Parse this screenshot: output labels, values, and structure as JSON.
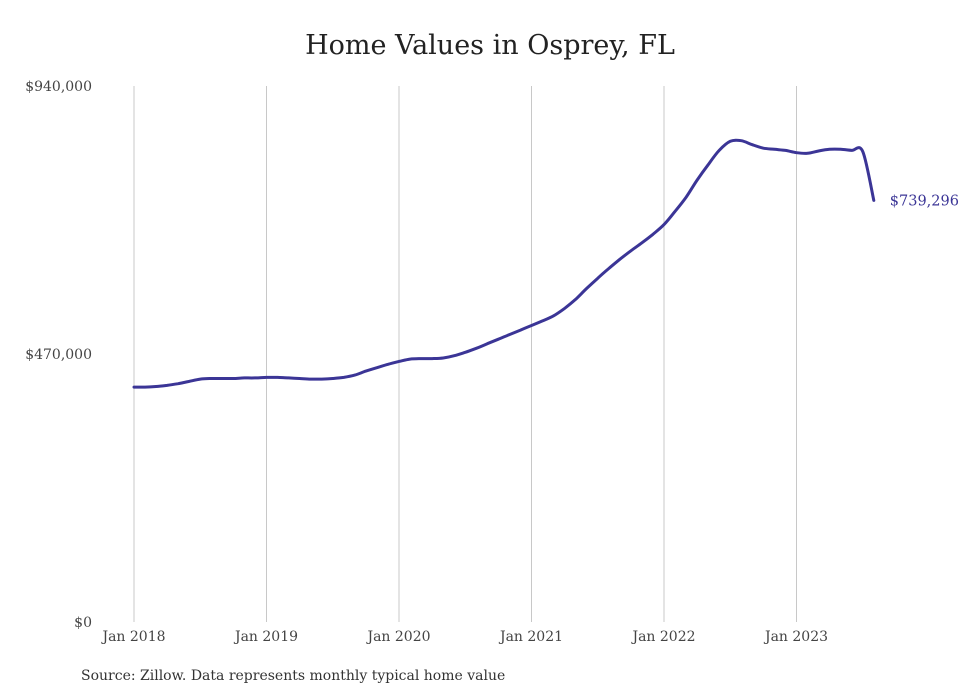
{
  "chart_data": {
    "type": "line",
    "title": "Home Values in Osprey, FL",
    "source": "Source: Zillow. Data represents monthly typical home value",
    "xlabel": "",
    "ylabel": "",
    "ylim": [
      0,
      940000
    ],
    "yticks": [
      0,
      470000,
      940000
    ],
    "ytick_labels": [
      "$0",
      "$470,000",
      "$940,000"
    ],
    "xticks": [
      "2018-01",
      "2019-01",
      "2020-01",
      "2021-01",
      "2022-01",
      "2023-01"
    ],
    "xtick_labels": [
      "Jan 2018",
      "Jan 2019",
      "Jan 2020",
      "Jan 2021",
      "Jan 2022",
      "Jan 2023"
    ],
    "xlim": [
      "2018-01",
      "2023-08"
    ],
    "grid": "vertical",
    "line_color": "#3b3596",
    "end_label": "$739,296",
    "series": [
      {
        "x": [
          "2018-01",
          "2018-02",
          "2018-03",
          "2018-04",
          "2018-05",
          "2018-06",
          "2018-07",
          "2018-08",
          "2018-09",
          "2018-10",
          "2018-11",
          "2018-12",
          "2019-01",
          "2019-02",
          "2019-03",
          "2019-04",
          "2019-05",
          "2019-06",
          "2019-07",
          "2019-08",
          "2019-09",
          "2019-10",
          "2019-11",
          "2019-12",
          "2020-01",
          "2020-02",
          "2020-03",
          "2020-04",
          "2020-05",
          "2020-06",
          "2020-07",
          "2020-08",
          "2020-09",
          "2020-10",
          "2020-11",
          "2020-12",
          "2021-01",
          "2021-02",
          "2021-03",
          "2021-04",
          "2021-05",
          "2021-06",
          "2021-07",
          "2021-08",
          "2021-09",
          "2021-10",
          "2021-11",
          "2021-12",
          "2022-01",
          "2022-02",
          "2022-03",
          "2022-04",
          "2022-05",
          "2022-06",
          "2022-07",
          "2022-08",
          "2022-09",
          "2022-10",
          "2022-11",
          "2022-12",
          "2023-01",
          "2023-02",
          "2023-03",
          "2023-04",
          "2023-05",
          "2023-06",
          "2023-07",
          "2023-08"
        ],
        "y": [
          412000,
          412000,
          413000,
          415000,
          418000,
          422000,
          426000,
          427000,
          427000,
          427000,
          428000,
          428000,
          429000,
          429000,
          428000,
          427000,
          426000,
          426000,
          427000,
          429000,
          433000,
          440000,
          446000,
          452000,
          457000,
          461000,
          462000,
          462000,
          463000,
          467000,
          473000,
          480000,
          488000,
          496000,
          504000,
          512000,
          520000,
          528000,
          537000,
          550000,
          566000,
          585000,
          603000,
          620000,
          636000,
          651000,
          665000,
          680000,
          697000,
          720000,
          745000,
          775000,
          802000,
          827000,
          843000,
          844000,
          837000,
          831000,
          829000,
          827000,
          823000,
          822000,
          826000,
          829000,
          829000,
          827000,
          825000,
          739296
        ]
      }
    ]
  }
}
